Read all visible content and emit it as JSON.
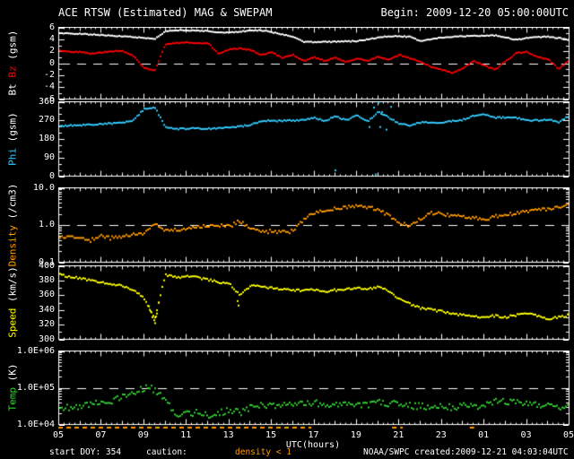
{
  "header": {
    "title": "ACE RTSW (Estimated) MAG & SWEPAM",
    "begin_label": "Begin: 2009-12-20 05:00:00UTC"
  },
  "colors": {
    "background": "#000000",
    "frame": "#ffffff",
    "bt": "#ffffff",
    "bz": "#ff0000",
    "phi": "#33ccff",
    "density": "#ff9900",
    "speed": "#ffff00",
    "temp": "#33cc33"
  },
  "xaxis": {
    "label": "UTC(hours)",
    "tick_labels": [
      "05",
      "07",
      "09",
      "11",
      "13",
      "15",
      "17",
      "19",
      "21",
      "23",
      "01",
      "03",
      "05"
    ],
    "hours_start": 5,
    "hours_end": 29,
    "hours": [
      5,
      5.5,
      6,
      6.5,
      7,
      7.5,
      8,
      8.5,
      9,
      9.5,
      10,
      10.5,
      11,
      11.5,
      12,
      12.5,
      13,
      13.5,
      14,
      14.5,
      15,
      15.5,
      16,
      16.5,
      17,
      17.5,
      18,
      18.5,
      19,
      19.5,
      20,
      20.5,
      21,
      21.5,
      22,
      22.5,
      23,
      23.5,
      24,
      24.5,
      25,
      25.5,
      26,
      26.5,
      27,
      27.5,
      28,
      28.5,
      29
    ]
  },
  "caution_segments": [
    [
      5.0,
      16.9
    ],
    [
      20.7,
      21.2
    ],
    [
      24.35,
      24.65
    ]
  ],
  "chart_data": [
    {
      "name": "bt-bz",
      "type": "line",
      "yscale": "linear",
      "ylim": [
        -6,
        6
      ],
      "ytick_minor": 1,
      "yticks": [
        {
          "v": 6,
          "label": "6"
        },
        {
          "v": 4,
          "label": "4"
        },
        {
          "v": 2,
          "label": "2"
        },
        {
          "v": 0,
          "label": "0"
        },
        {
          "v": -2,
          "label": "-2"
        },
        {
          "v": -4,
          "label": "-4"
        },
        {
          "v": -6,
          "label": "-6"
        }
      ],
      "dashed_at": 0,
      "jitter": 0.08,
      "ylabel_parts": [
        {
          "text": "Bt",
          "color": "#ffffff"
        },
        {
          "text": "Bz",
          "color": "#ff0000"
        },
        {
          "text": "(gsm)",
          "color": "#ffffff"
        }
      ],
      "series": [
        {
          "name": "Bt",
          "color": "#ffffff",
          "values": [
            5.0,
            4.95,
            4.9,
            4.8,
            4.7,
            4.6,
            4.5,
            4.4,
            4.2,
            4.0,
            5.4,
            5.5,
            5.5,
            5.45,
            5.4,
            5.15,
            5.1,
            5.3,
            5.45,
            5.5,
            5.2,
            4.8,
            4.4,
            3.6,
            3.5,
            3.55,
            3.6,
            3.65,
            3.7,
            4.0,
            4.3,
            4.5,
            4.5,
            4.4,
            3.7,
            4.0,
            4.3,
            4.4,
            4.5,
            4.55,
            4.6,
            4.65,
            4.3,
            3.9,
            4.2,
            4.35,
            4.45,
            4.2,
            3.9
          ]
        },
        {
          "name": "Bz",
          "color": "#ff0000",
          "values": [
            2.2,
            1.9,
            1.9,
            1.6,
            1.8,
            2.0,
            2.0,
            1.2,
            -0.8,
            -1.3,
            3.2,
            3.4,
            3.5,
            3.3,
            3.4,
            1.6,
            2.3,
            2.5,
            2.2,
            1.4,
            1.8,
            0.9,
            1.4,
            0.4,
            1.0,
            0.4,
            0.9,
            0.2,
            0.8,
            0.4,
            1.1,
            0.6,
            1.4,
            0.8,
            0.3,
            -0.6,
            -1.1,
            -1.6,
            -0.8,
            0.4,
            -0.4,
            -1.1,
            0.3,
            1.7,
            1.9,
            1.0,
            0.7,
            -1.0,
            0.5
          ]
        }
      ]
    },
    {
      "name": "phi",
      "type": "scatter",
      "yscale": "linear",
      "ylim": [
        0,
        360
      ],
      "ytick_minor": 30,
      "yticks": [
        {
          "v": 360,
          "label": "360"
        },
        {
          "v": 270,
          "label": "270"
        },
        {
          "v": 180,
          "label": "180"
        },
        {
          "v": 90,
          "label": "90"
        },
        {
          "v": 0,
          "label": "0"
        }
      ],
      "dashed_at": null,
      "jitter": 3.5,
      "ylabel_parts": [
        {
          "text": "Phi",
          "color": "#33ccff"
        },
        {
          "text": "(gsm)",
          "color": "#ffffff"
        }
      ],
      "series": [
        {
          "name": "Phi",
          "color": "#33ccff",
          "values": [
            243,
            245,
            247,
            250,
            252,
            255,
            258,
            272,
            325,
            333,
            236,
            228,
            230,
            231,
            229,
            233,
            236,
            240,
            248,
            266,
            268,
            267,
            269,
            271,
            283,
            268,
            288,
            270,
            295,
            265,
            310,
            285,
            252,
            246,
            260,
            258,
            261,
            266,
            273,
            292,
            300,
            283,
            284,
            281,
            272,
            269,
            274,
            262,
            293
          ],
          "extra_points": [
            [
              19.6,
              238
            ],
            [
              19.8,
              332
            ],
            [
              20.0,
              355
            ],
            [
              20.1,
              238
            ],
            [
              20.2,
              310
            ],
            [
              20.4,
              225
            ],
            [
              20.6,
              335
            ],
            [
              18.0,
              28
            ],
            [
              19.9,
              8
            ]
          ]
        }
      ]
    },
    {
      "name": "density",
      "type": "scatter",
      "yscale": "log",
      "ylim": [
        0.1,
        10
      ],
      "yticks": [
        {
          "v": 10,
          "label": "10.0"
        },
        {
          "v": 1,
          "label": "1.0"
        },
        {
          "v": 0.1,
          "label": "0.1"
        }
      ],
      "dashed_at": 1.0,
      "jitter": 0.045,
      "quantize_below": 1.15,
      "quantize_step": 0.05,
      "ylabel_parts": [
        {
          "text": "Density",
          "color": "#ff9900"
        },
        {
          "text": "(/cm3)",
          "color": "#ffffff"
        }
      ],
      "series": [
        {
          "name": "Density",
          "color": "#ff9900",
          "values": [
            0.45,
            0.5,
            0.45,
            0.4,
            0.5,
            0.45,
            0.5,
            0.55,
            0.6,
            1.1,
            0.7,
            0.75,
            0.8,
            0.9,
            0.95,
            1.0,
            0.9,
            1.3,
            0.8,
            0.6,
            0.7,
            0.65,
            0.7,
            1.4,
            2.2,
            2.5,
            2.8,
            3.0,
            3.2,
            3.0,
            2.6,
            1.8,
            1.1,
            0.95,
            1.5,
            2.1,
            2.0,
            1.8,
            1.7,
            1.6,
            1.4,
            1.7,
            1.9,
            2.1,
            2.3,
            2.5,
            2.7,
            3.1,
            3.9
          ]
        }
      ]
    },
    {
      "name": "speed",
      "type": "scatter",
      "yscale": "linear",
      "ylim": [
        300,
        400
      ],
      "ytick_minor": 10,
      "yticks": [
        {
          "v": 400,
          "label": "400"
        },
        {
          "v": 380,
          "label": "380"
        },
        {
          "v": 360,
          "label": "360"
        },
        {
          "v": 340,
          "label": "340"
        },
        {
          "v": 320,
          "label": "320"
        },
        {
          "v": 300,
          "label": "300"
        }
      ],
      "dashed_at": null,
      "jitter": 1.5,
      "ylabel_parts": [
        {
          "text": "Speed",
          "color": "#ffff00"
        },
        {
          "text": "(km/s)",
          "color": "#ffffff"
        }
      ],
      "series": [
        {
          "name": "Speed",
          "color": "#ffff00",
          "values": [
            388,
            385,
            383,
            380,
            378,
            375,
            372,
            368,
            355,
            328,
            388,
            384,
            386,
            384,
            381,
            378,
            376,
            360,
            373,
            372,
            370,
            368,
            367,
            366,
            368,
            365,
            367,
            368,
            370,
            368,
            372,
            365,
            355,
            348,
            342,
            340,
            338,
            335,
            333,
            332,
            330,
            332,
            330,
            333,
            335,
            332,
            328,
            330,
            333
          ],
          "extra_points": [
            [
              9.2,
              345
            ],
            [
              9.3,
              338
            ],
            [
              9.4,
              330
            ],
            [
              9.45,
              326
            ],
            [
              9.5,
              322
            ],
            [
              9.55,
              331
            ],
            [
              9.6,
              335
            ],
            [
              9.7,
              350
            ],
            [
              13.4,
              352
            ],
            [
              13.45,
              346
            ]
          ]
        }
      ]
    },
    {
      "name": "temp",
      "type": "scatter",
      "yscale": "log",
      "ylim": [
        10000,
        1000000
      ],
      "yticks": [
        {
          "v": 1000000,
          "label": "1.0E+06"
        },
        {
          "v": 100000,
          "label": "1.0E+05"
        },
        {
          "v": 10000,
          "label": "1.0E+04"
        }
      ],
      "dashed_at": 100000,
      "jitter": 0.09,
      "ylabel_parts": [
        {
          "text": "Temp",
          "color": "#33cc33"
        },
        {
          "text": "(K)",
          "color": "#ffffff"
        }
      ],
      "series": [
        {
          "name": "Temp",
          "color": "#33cc33",
          "values": [
            30000,
            28000,
            32000,
            35000,
            40000,
            45000,
            55000,
            75000,
            100000,
            90000,
            45000,
            20000,
            19000,
            21000,
            18000,
            20000,
            24000,
            21000,
            29000,
            34000,
            31000,
            34000,
            37000,
            34000,
            39000,
            35000,
            33000,
            37000,
            34000,
            32000,
            39000,
            37000,
            35000,
            33000,
            31000,
            29000,
            31000,
            29000,
            33000,
            31000,
            35000,
            41000,
            44000,
            39000,
            37000,
            34000,
            31000,
            29000,
            33000
          ]
        }
      ]
    }
  ],
  "footer": {
    "start_doy": "start DOY: 354",
    "caution_label": "caution:",
    "caution_value": "density < 1",
    "source": "NOAA/SWPC",
    "created": "created:2009-12-21 04:03:04UTC"
  }
}
